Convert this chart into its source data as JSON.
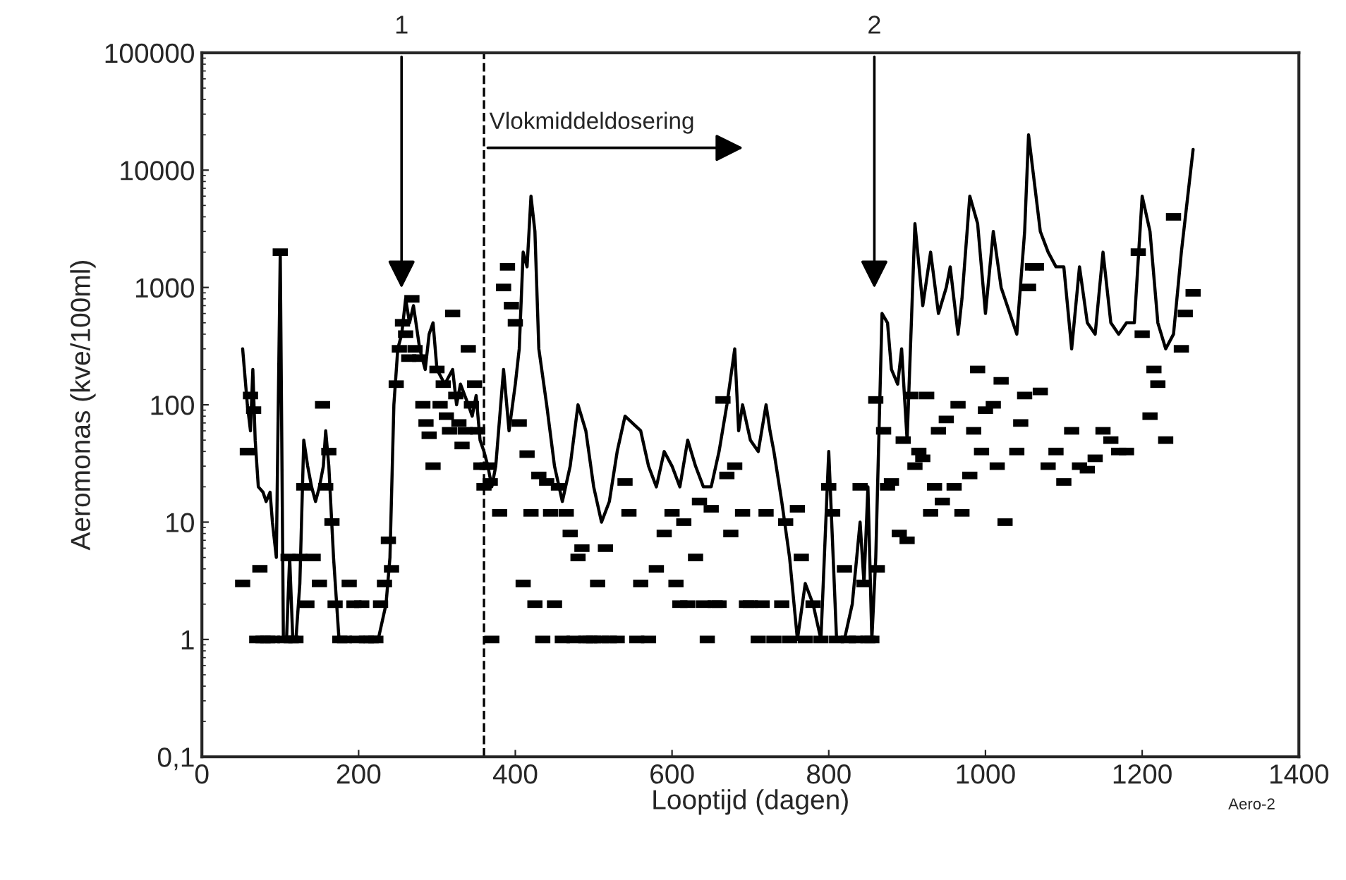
{
  "chart_data": {
    "type": "line",
    "xlabel": "Looptijd (dagen)",
    "ylabel": "Aeromonas (kve/100ml)",
    "xlim": [
      0,
      1400
    ],
    "xticks": [
      0,
      200,
      400,
      600,
      800,
      1000,
      1200,
      1400
    ],
    "ylim": [
      0.1,
      100000
    ],
    "yticks": [
      {
        "value": 0.1,
        "label": "0,1"
      },
      1,
      10,
      100,
      1000,
      10000,
      100000
    ],
    "log": "y",
    "grid": false,
    "legend": false,
    "series": [
      {
        "color": "#000000",
        "marker": "none",
        "line_style": "solid",
        "x": [
          52,
          58,
          62,
          65,
          68,
          72,
          78,
          82,
          87,
          90,
          95,
          100,
          104,
          108,
          112,
          116,
          120,
          125,
          130,
          135,
          140,
          145,
          150,
          155,
          158,
          162,
          168,
          175,
          185,
          200,
          215,
          225,
          235,
          240,
          245,
          250,
          255,
          260,
          265,
          270,
          278,
          285,
          290,
          295,
          300,
          310,
          320,
          325,
          330,
          340,
          345,
          350,
          355,
          360,
          365,
          370,
          375,
          385,
          392,
          400,
          405,
          410,
          415,
          420,
          425,
          430,
          440,
          450,
          460,
          470,
          480,
          490,
          500,
          510,
          520,
          530,
          540,
          560,
          570,
          580,
          590,
          600,
          610,
          620,
          630,
          640,
          650,
          660,
          670,
          680,
          685,
          690,
          700,
          710,
          720,
          725,
          730,
          740,
          750,
          760,
          770,
          780,
          790,
          800,
          810,
          820,
          830,
          840,
          845,
          850,
          855,
          860,
          868,
          875,
          880,
          888,
          893,
          900,
          910,
          920,
          930,
          940,
          950,
          955,
          965,
          970,
          980,
          990,
          1000,
          1010,
          1020,
          1040,
          1050,
          1055,
          1070,
          1080,
          1090,
          1100,
          1110,
          1120,
          1130,
          1140,
          1150,
          1160,
          1170,
          1180,
          1190,
          1200,
          1210,
          1220,
          1230,
          1240,
          1250,
          1265
        ],
        "values": [
          300,
          100,
          60,
          200,
          50,
          20,
          18,
          15,
          18,
          10,
          5,
          2000,
          1,
          1,
          5,
          1,
          1,
          3,
          50,
          30,
          20,
          15,
          20,
          30,
          60,
          30,
          5,
          1,
          1,
          1,
          1,
          1,
          2,
          5,
          100,
          300,
          400,
          800,
          500,
          700,
          300,
          200,
          400,
          500,
          200,
          150,
          200,
          100,
          150,
          100,
          80,
          120,
          50,
          40,
          30,
          20,
          30,
          200,
          60,
          150,
          300,
          2000,
          1500,
          6000,
          3000,
          300,
          100,
          30,
          15,
          30,
          100,
          60,
          20,
          10,
          15,
          40,
          80,
          60,
          30,
          20,
          40,
          30,
          20,
          50,
          30,
          20,
          20,
          40,
          100,
          300,
          60,
          100,
          50,
          40,
          100,
          60,
          40,
          15,
          5,
          1,
          3,
          2,
          1,
          40,
          1,
          1,
          2,
          10,
          3,
          20,
          1,
          5,
          600,
          500,
          200,
          150,
          300,
          50,
          3500,
          700,
          2000,
          600,
          1000,
          1500,
          400,
          800,
          6000,
          3500,
          600,
          3000,
          1000,
          400,
          3000,
          20000,
          3000,
          2000,
          1500,
          1500,
          300,
          1500,
          500,
          400,
          2000,
          500,
          400,
          500,
          500,
          6000,
          3000,
          500,
          300,
          400,
          2000,
          15000
        ]
      },
      {
        "type": "scatter",
        "color": "#000000",
        "marker": "square",
        "x": [
          52,
          58,
          62,
          66,
          70,
          74,
          78,
          84,
          90,
          100,
          106,
          110,
          114,
          120,
          125,
          130,
          134,
          142,
          150,
          154,
          158,
          162,
          166,
          170,
          176,
          182,
          188,
          194,
          198,
          204,
          210,
          216,
          222,
          228,
          233,
          238,
          242,
          248,
          252,
          256,
          260,
          264,
          268,
          272,
          278,
          282,
          286,
          290,
          295,
          300,
          304,
          308,
          312,
          316,
          320,
          324,
          328,
          332,
          336,
          340,
          344,
          348,
          352,
          356,
          360,
          364,
          368,
          370,
          380,
          385,
          390,
          395,
          400,
          405,
          410,
          415,
          420,
          425,
          430,
          435,
          440,
          445,
          450,
          455,
          460,
          465,
          470,
          475,
          480,
          485,
          490,
          495,
          500,
          505,
          510,
          515,
          520,
          530,
          540,
          545,
          555,
          560,
          570,
          580,
          590,
          600,
          605,
          610,
          615,
          620,
          630,
          635,
          640,
          645,
          650,
          655,
          660,
          665,
          670,
          675,
          680,
          690,
          695,
          700,
          710,
          715,
          720,
          730,
          740,
          745,
          750,
          760,
          765,
          770,
          780,
          790,
          800,
          805,
          810,
          820,
          825,
          835,
          840,
          845,
          850,
          855,
          860,
          862,
          870,
          875,
          880,
          890,
          895,
          900,
          905,
          910,
          915,
          920,
          925,
          930,
          935,
          940,
          945,
          950,
          960,
          965,
          970,
          980,
          985,
          990,
          995,
          1000,
          1010,
          1015,
          1020,
          1025,
          1040,
          1045,
          1050,
          1055,
          1060,
          1065,
          1070,
          1080,
          1090,
          1100,
          1110,
          1120,
          1130,
          1140,
          1150,
          1160,
          1170,
          1180,
          1195,
          1200,
          1210,
          1215,
          1220,
          1230,
          1240,
          1250,
          1255,
          1265
        ],
        "values": [
          3,
          40,
          120,
          90,
          1,
          4,
          1,
          1,
          1,
          2000,
          1,
          5,
          1,
          1,
          5,
          20,
          2,
          5,
          3,
          100,
          20,
          40,
          10,
          2,
          1,
          1,
          3,
          2,
          1,
          2,
          1,
          1,
          1,
          2,
          3,
          7,
          4,
          150,
          300,
          500,
          400,
          250,
          800,
          300,
          250,
          100,
          70,
          55,
          30,
          200,
          100,
          150,
          80,
          60,
          600,
          120,
          70,
          45,
          60,
          300,
          100,
          150,
          60,
          30,
          20,
          30,
          22,
          1,
          12,
          1000,
          1500,
          700,
          500,
          70,
          3,
          38,
          12,
          2,
          25,
          1,
          22,
          12,
          2,
          20,
          1,
          12,
          8,
          1,
          5,
          6,
          1,
          1,
          1,
          3,
          1,
          6,
          1,
          1,
          22,
          12,
          1,
          3,
          1,
          4,
          8,
          12,
          3,
          2,
          10,
          2,
          5,
          15,
          2,
          1,
          13,
          2,
          2,
          110,
          25,
          8,
          30,
          12,
          2,
          2,
          1,
          2,
          12,
          1,
          2,
          10,
          1,
          13,
          5,
          1,
          2,
          1,
          20,
          12,
          1,
          4,
          1,
          1,
          20,
          3,
          1,
          1,
          110,
          4,
          60,
          20,
          22,
          8,
          50,
          7,
          120,
          30,
          40,
          35,
          120,
          12,
          20,
          60,
          15,
          75,
          20,
          100,
          12,
          25,
          60,
          200,
          40,
          90,
          100,
          30,
          160,
          10,
          40,
          70,
          120,
          1000,
          1500,
          1500,
          130,
          30,
          40,
          22,
          60,
          30,
          28,
          35,
          60,
          50,
          40,
          40,
          2000,
          400,
          80,
          200,
          150,
          50,
          4000,
          300,
          600,
          900
        ]
      }
    ],
    "ref_lines": [
      {
        "axis": "x",
        "value": 360,
        "line_style": "dashed",
        "color": "#000000"
      }
    ],
    "annotations": [
      "1",
      "2",
      "Vlokmiddeldosering",
      "Aero-2"
    ]
  }
}
